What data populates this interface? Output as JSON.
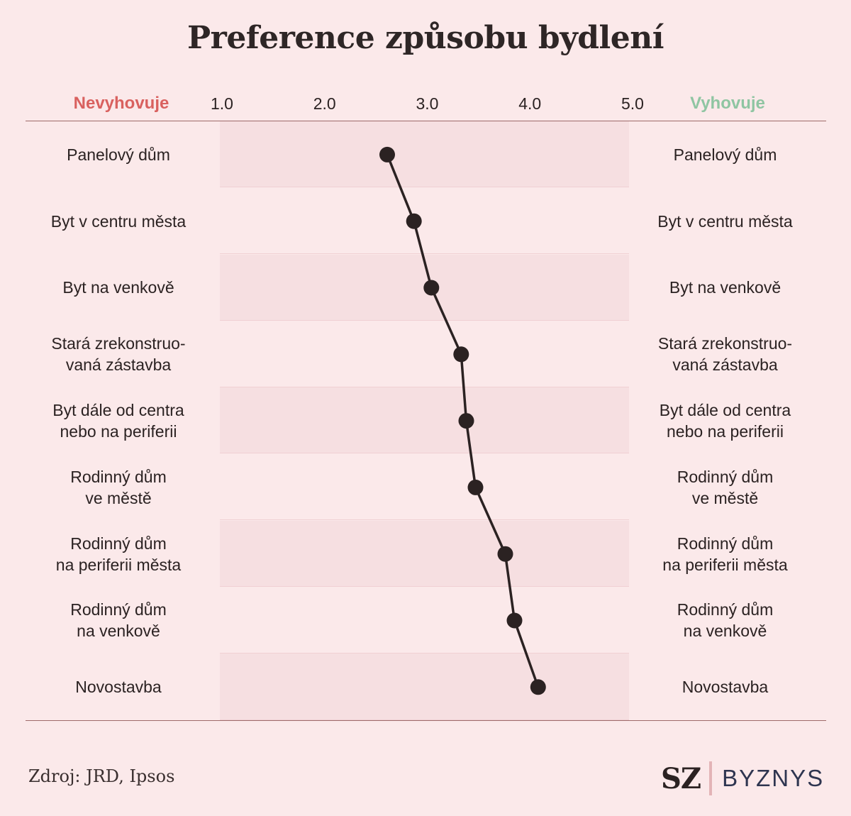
{
  "chart_data": {
    "type": "line",
    "title": "Preference způsobu bydlení",
    "negative_label": "Nevyhovuje",
    "positive_label": "Vyhovuje",
    "xticks": [
      "1.0",
      "2.0",
      "3.0",
      "4.0",
      "5.0"
    ],
    "xlim": [
      1,
      5
    ],
    "categories": [
      "Panelový dům",
      "Byt v centru města",
      "Byt na venkově",
      "Stará zrekonstruo-\nvaná zástavba",
      "Byt dále od centra\nnebo na periferii",
      "Rodinný dům\nve městě",
      "Rodinný dům\nna periferii města",
      "Rodinný dům\nna venkově",
      "Novostavba"
    ],
    "values": [
      2.61,
      2.87,
      3.04,
      3.33,
      3.38,
      3.47,
      3.76,
      3.85,
      4.08
    ],
    "colors": {
      "negative": "#d9615f",
      "positive": "#8fc5a2",
      "line": "#2b2222",
      "band": "#f6dfe1"
    }
  },
  "source": "Zdroj: JRD, Ipsos",
  "logo": {
    "sz": "SZ",
    "byznys": "BYZNYS"
  }
}
